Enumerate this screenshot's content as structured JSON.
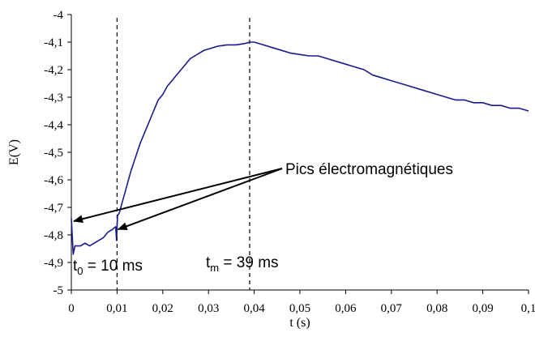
{
  "chart_data": {
    "type": "line",
    "title": "",
    "xlabel": "t (s)",
    "ylabel": "E(V)",
    "xlim": [
      0,
      0.1
    ],
    "ylim": [
      -5,
      -4
    ],
    "grid": false,
    "x_ticks": [
      "0",
      "0,01",
      "0,02",
      "0,03",
      "0,04",
      "0,05",
      "0,06",
      "0,07",
      "0,08",
      "0,09",
      "0,1"
    ],
    "y_ticks": [
      "-4",
      "-4,1",
      "-4,2",
      "-4,3",
      "-4,4",
      "-4,5",
      "-4,6",
      "-4,7",
      "-4,8",
      "-4,9",
      "-5"
    ],
    "line_color": "#1a1a8c",
    "series": [
      {
        "points": [
          [
            0.0,
            -4.74
          ],
          [
            0.0004,
            -4.87
          ],
          [
            0.0008,
            -4.84
          ],
          [
            0.002,
            -4.84
          ],
          [
            0.003,
            -4.83
          ],
          [
            0.004,
            -4.84
          ],
          [
            0.005,
            -4.83
          ],
          [
            0.006,
            -4.82
          ],
          [
            0.007,
            -4.81
          ],
          [
            0.008,
            -4.79
          ],
          [
            0.009,
            -4.78
          ],
          [
            0.0097,
            -4.77
          ],
          [
            0.0099,
            -4.82
          ],
          [
            0.0101,
            -4.73
          ],
          [
            0.0105,
            -4.72
          ],
          [
            0.011,
            -4.69
          ],
          [
            0.012,
            -4.63
          ],
          [
            0.013,
            -4.57
          ],
          [
            0.014,
            -4.52
          ],
          [
            0.015,
            -4.47
          ],
          [
            0.016,
            -4.43
          ],
          [
            0.017,
            -4.39
          ],
          [
            0.018,
            -4.35
          ],
          [
            0.019,
            -4.31
          ],
          [
            0.02,
            -4.29
          ],
          [
            0.021,
            -4.26
          ],
          [
            0.022,
            -4.24
          ],
          [
            0.023,
            -4.22
          ],
          [
            0.024,
            -4.2
          ],
          [
            0.025,
            -4.18
          ],
          [
            0.026,
            -4.16
          ],
          [
            0.027,
            -4.15
          ],
          [
            0.028,
            -4.14
          ],
          [
            0.029,
            -4.13
          ],
          [
            0.03,
            -4.125
          ],
          [
            0.032,
            -4.115
          ],
          [
            0.034,
            -4.11
          ],
          [
            0.036,
            -4.11
          ],
          [
            0.038,
            -4.105
          ],
          [
            0.039,
            -4.1
          ],
          [
            0.04,
            -4.1
          ],
          [
            0.042,
            -4.11
          ],
          [
            0.044,
            -4.12
          ],
          [
            0.046,
            -4.13
          ],
          [
            0.048,
            -4.14
          ],
          [
            0.05,
            -4.145
          ],
          [
            0.052,
            -4.15
          ],
          [
            0.054,
            -4.15
          ],
          [
            0.056,
            -4.16
          ],
          [
            0.058,
            -4.17
          ],
          [
            0.06,
            -4.18
          ],
          [
            0.062,
            -4.19
          ],
          [
            0.064,
            -4.2
          ],
          [
            0.066,
            -4.22
          ],
          [
            0.068,
            -4.23
          ],
          [
            0.07,
            -4.24
          ],
          [
            0.072,
            -4.25
          ],
          [
            0.074,
            -4.26
          ],
          [
            0.076,
            -4.27
          ],
          [
            0.078,
            -4.28
          ],
          [
            0.08,
            -4.29
          ],
          [
            0.082,
            -4.3
          ],
          [
            0.084,
            -4.31
          ],
          [
            0.086,
            -4.31
          ],
          [
            0.088,
            -4.32
          ],
          [
            0.09,
            -4.32
          ],
          [
            0.092,
            -4.33
          ],
          [
            0.094,
            -4.33
          ],
          [
            0.096,
            -4.34
          ],
          [
            0.098,
            -4.34
          ],
          [
            0.1,
            -4.35
          ]
        ]
      }
    ],
    "reference_lines_x": [
      0.01,
      0.039
    ],
    "annotations": {
      "label": "Pics électromagnétiques",
      "arrow_targets": [
        [
          0.0,
          -4.75
        ],
        [
          0.0097,
          -4.78
        ]
      ],
      "t0_base": "t",
      "t0_sub": "0",
      "t0_value": " = 10 ms",
      "tm_base": "t",
      "tm_sub": "m",
      "tm_value": " = 39 ms"
    }
  }
}
